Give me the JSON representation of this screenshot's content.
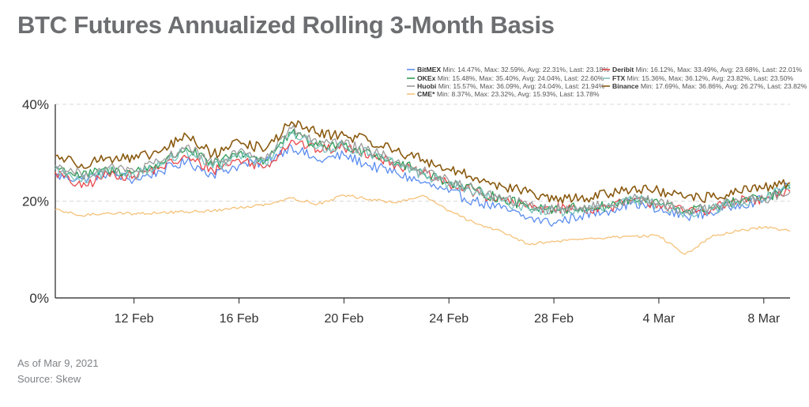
{
  "title": "BTC Futures Annualized Rolling 3-Month Basis",
  "footer": {
    "as_of": "As of Mar 9, 2021",
    "source": "Source: Skew"
  },
  "chart_data": {
    "type": "line",
    "x_start": "2021-02-09",
    "x_end": "2021-03-09",
    "x_ticks": [
      "12 Feb",
      "16 Feb",
      "20 Feb",
      "24 Feb",
      "28 Feb",
      "4 Mar",
      "8 Mar"
    ],
    "x_tick_dates": [
      "2021-02-12",
      "2021-02-16",
      "2021-02-20",
      "2021-02-24",
      "2021-02-28",
      "2021-03-04",
      "2021-03-08"
    ],
    "y_ticks": [
      "0%",
      "20%",
      "40%"
    ],
    "ylim": [
      0,
      40
    ],
    "grid": true,
    "legend_position": "top-right",
    "series": [
      {
        "name": "BitMEX",
        "color": "#5b8def",
        "stats": "Min: 14.47%, Max: 32.59%, Avg: 22.31%, Last: 23.18%",
        "points": [
          [
            "2021-02-09",
            25.2
          ],
          [
            "2021-02-10",
            24.6
          ],
          [
            "2021-02-11",
            25.8
          ],
          [
            "2021-02-12",
            24.4
          ],
          [
            "2021-02-13",
            26.2
          ],
          [
            "2021-02-14",
            28.2
          ],
          [
            "2021-02-15",
            25.6
          ],
          [
            "2021-02-16",
            27.4
          ],
          [
            "2021-02-17",
            28.1
          ],
          [
            "2021-02-18",
            31.4
          ],
          [
            "2021-02-19",
            28.3
          ],
          [
            "2021-02-20",
            29.5
          ],
          [
            "2021-02-21",
            27.3
          ],
          [
            "2021-02-22",
            25.8
          ],
          [
            "2021-02-23",
            23.8
          ],
          [
            "2021-02-24",
            21.8
          ],
          [
            "2021-02-25",
            20.0
          ],
          [
            "2021-02-26",
            18.5
          ],
          [
            "2021-02-27",
            16.5
          ],
          [
            "2021-02-28",
            15.5
          ],
          [
            "2021-03-01",
            17.0
          ],
          [
            "2021-03-02",
            18.0
          ],
          [
            "2021-03-03",
            19.8
          ],
          [
            "2021-03-04",
            18.0
          ],
          [
            "2021-03-05",
            17.0
          ],
          [
            "2021-03-06",
            17.6
          ],
          [
            "2021-03-07",
            19.4
          ],
          [
            "2021-03-08",
            20.2
          ],
          [
            "2021-03-09",
            23.2
          ]
        ]
      },
      {
        "name": "Deribit",
        "color": "#e8474b",
        "stats": "Min: 16.12%, Max: 33.49%, Avg: 23.68%, Last: 22.01%",
        "points": [
          [
            "2021-02-09",
            26.0
          ],
          [
            "2021-02-10",
            22.8
          ],
          [
            "2021-02-11",
            25.6
          ],
          [
            "2021-02-12",
            25.2
          ],
          [
            "2021-02-13",
            27.0
          ],
          [
            "2021-02-14",
            29.0
          ],
          [
            "2021-02-15",
            26.4
          ],
          [
            "2021-02-16",
            28.6
          ],
          [
            "2021-02-17",
            27.0
          ],
          [
            "2021-02-18",
            32.6
          ],
          [
            "2021-02-19",
            30.6
          ],
          [
            "2021-02-20",
            31.0
          ],
          [
            "2021-02-21",
            29.8
          ],
          [
            "2021-02-22",
            27.6
          ],
          [
            "2021-02-23",
            25.6
          ],
          [
            "2021-02-24",
            23.5
          ],
          [
            "2021-02-25",
            21.7
          ],
          [
            "2021-02-26",
            20.2
          ],
          [
            "2021-02-27",
            18.8
          ],
          [
            "2021-02-28",
            18.6
          ],
          [
            "2021-03-01",
            18.4
          ],
          [
            "2021-03-02",
            18.6
          ],
          [
            "2021-03-03",
            20.2
          ],
          [
            "2021-03-04",
            19.4
          ],
          [
            "2021-03-05",
            17.8
          ],
          [
            "2021-03-06",
            18.4
          ],
          [
            "2021-03-07",
            20.0
          ],
          [
            "2021-03-08",
            20.2
          ],
          [
            "2021-03-09",
            22.0
          ]
        ]
      },
      {
        "name": "OKEx",
        "color": "#2e9e57",
        "stats": "Min: 15.48%, Max: 35.40%, Avg: 24.04%, Last: 22.60%",
        "points": [
          [
            "2021-02-09",
            27.0
          ],
          [
            "2021-02-10",
            25.2
          ],
          [
            "2021-02-11",
            26.4
          ],
          [
            "2021-02-12",
            26.0
          ],
          [
            "2021-02-13",
            27.8
          ],
          [
            "2021-02-14",
            31.0
          ],
          [
            "2021-02-15",
            27.4
          ],
          [
            "2021-02-16",
            30.0
          ],
          [
            "2021-02-17",
            28.4
          ],
          [
            "2021-02-18",
            34.0
          ],
          [
            "2021-02-19",
            31.4
          ],
          [
            "2021-02-20",
            31.6
          ],
          [
            "2021-02-21",
            30.2
          ],
          [
            "2021-02-22",
            28.0
          ],
          [
            "2021-02-23",
            26.0
          ],
          [
            "2021-02-24",
            24.0
          ],
          [
            "2021-02-25",
            22.2
          ],
          [
            "2021-02-26",
            20.5
          ],
          [
            "2021-02-27",
            19.0
          ],
          [
            "2021-02-28",
            18.4
          ],
          [
            "2021-03-01",
            18.6
          ],
          [
            "2021-03-02",
            18.9
          ],
          [
            "2021-03-03",
            20.4
          ],
          [
            "2021-03-04",
            19.6
          ],
          [
            "2021-03-05",
            18.0
          ],
          [
            "2021-03-06",
            18.6
          ],
          [
            "2021-03-07",
            20.0
          ],
          [
            "2021-03-08",
            20.6
          ],
          [
            "2021-03-09",
            22.6
          ]
        ]
      },
      {
        "name": "FTX",
        "color": "#7cc3c0",
        "stats": "Min: 15.36%, Max: 36.12%, Avg: 23.82%, Last: 23.50%",
        "points": [
          [
            "2021-02-09",
            26.6
          ],
          [
            "2021-02-10",
            24.0
          ],
          [
            "2021-02-11",
            26.0
          ],
          [
            "2021-02-12",
            25.6
          ],
          [
            "2021-02-13",
            27.4
          ],
          [
            "2021-02-14",
            30.4
          ],
          [
            "2021-02-15",
            26.8
          ],
          [
            "2021-02-16",
            29.4
          ],
          [
            "2021-02-17",
            27.8
          ],
          [
            "2021-02-18",
            34.4
          ],
          [
            "2021-02-19",
            31.0
          ],
          [
            "2021-02-20",
            31.2
          ],
          [
            "2021-02-21",
            29.8
          ],
          [
            "2021-02-22",
            27.6
          ],
          [
            "2021-02-23",
            25.6
          ],
          [
            "2021-02-24",
            23.6
          ],
          [
            "2021-02-25",
            21.8
          ],
          [
            "2021-02-26",
            20.0
          ],
          [
            "2021-02-27",
            18.6
          ],
          [
            "2021-02-28",
            17.8
          ],
          [
            "2021-03-01",
            18.2
          ],
          [
            "2021-03-02",
            18.6
          ],
          [
            "2021-03-03",
            20.4
          ],
          [
            "2021-03-04",
            19.2
          ],
          [
            "2021-03-05",
            17.6
          ],
          [
            "2021-03-06",
            18.2
          ],
          [
            "2021-03-07",
            19.8
          ],
          [
            "2021-03-08",
            20.4
          ],
          [
            "2021-03-09",
            23.5
          ]
        ]
      },
      {
        "name": "Huobi",
        "color": "#9b9b9b",
        "stats": "Min: 15.57%, Max: 36.09%, Avg: 24.04%, Last: 21.94%",
        "points": [
          [
            "2021-02-09",
            27.4
          ],
          [
            "2021-02-10",
            25.4
          ],
          [
            "2021-02-11",
            26.8
          ],
          [
            "2021-02-12",
            26.2
          ],
          [
            "2021-02-13",
            28.0
          ],
          [
            "2021-02-14",
            31.4
          ],
          [
            "2021-02-15",
            27.6
          ],
          [
            "2021-02-16",
            30.4
          ],
          [
            "2021-02-17",
            28.6
          ],
          [
            "2021-02-18",
            35.0
          ],
          [
            "2021-02-19",
            31.8
          ],
          [
            "2021-02-20",
            31.8
          ],
          [
            "2021-02-21",
            30.4
          ],
          [
            "2021-02-22",
            28.2
          ],
          [
            "2021-02-23",
            26.2
          ],
          [
            "2021-02-24",
            24.2
          ],
          [
            "2021-02-25",
            22.4
          ],
          [
            "2021-02-26",
            20.6
          ],
          [
            "2021-02-27",
            19.2
          ],
          [
            "2021-02-28",
            18.2
          ],
          [
            "2021-03-01",
            18.8
          ],
          [
            "2021-03-02",
            19.0
          ],
          [
            "2021-03-03",
            20.6
          ],
          [
            "2021-03-04",
            19.8
          ],
          [
            "2021-03-05",
            18.0
          ],
          [
            "2021-03-06",
            18.8
          ],
          [
            "2021-03-07",
            20.2
          ],
          [
            "2021-03-08",
            20.4
          ],
          [
            "2021-03-09",
            21.9
          ]
        ]
      },
      {
        "name": "Binance",
        "color": "#8a5a10",
        "stats": "Min: 17.69%, Max: 36.86%, Avg: 26.27%, Last: 23.82%",
        "points": [
          [
            "2021-02-09",
            29.4
          ],
          [
            "2021-02-10",
            27.6
          ],
          [
            "2021-02-11",
            29.0
          ],
          [
            "2021-02-12",
            28.6
          ],
          [
            "2021-02-13",
            30.2
          ],
          [
            "2021-02-14",
            33.6
          ],
          [
            "2021-02-15",
            29.6
          ],
          [
            "2021-02-16",
            32.4
          ],
          [
            "2021-02-17",
            30.6
          ],
          [
            "2021-02-18",
            36.4
          ],
          [
            "2021-02-19",
            34.0
          ],
          [
            "2021-02-20",
            33.6
          ],
          [
            "2021-02-21",
            32.4
          ],
          [
            "2021-02-22",
            30.4
          ],
          [
            "2021-02-23",
            28.6
          ],
          [
            "2021-02-24",
            26.6
          ],
          [
            "2021-02-25",
            24.8
          ],
          [
            "2021-02-26",
            23.2
          ],
          [
            "2021-02-27",
            21.8
          ],
          [
            "2021-02-28",
            20.2
          ],
          [
            "2021-03-01",
            20.6
          ],
          [
            "2021-03-02",
            21.4
          ],
          [
            "2021-03-03",
            22.8
          ],
          [
            "2021-03-04",
            22.0
          ],
          [
            "2021-03-05",
            20.6
          ],
          [
            "2021-03-06",
            20.8
          ],
          [
            "2021-03-07",
            22.0
          ],
          [
            "2021-03-08",
            22.6
          ],
          [
            "2021-03-09",
            23.8
          ]
        ]
      },
      {
        "name": "CME*",
        "color": "#f5c27a",
        "stats": "Min: 8.37%, Max: 23.32%, Avg: 15.93%, Last: 13.78%",
        "points": [
          [
            "2021-02-09",
            18.2
          ],
          [
            "2021-02-10",
            17.0
          ],
          [
            "2021-02-11",
            17.6
          ],
          [
            "2021-02-12",
            17.4
          ],
          [
            "2021-02-13",
            17.6
          ],
          [
            "2021-02-14",
            17.8
          ],
          [
            "2021-02-15",
            18.0
          ],
          [
            "2021-02-16",
            18.6
          ],
          [
            "2021-02-17",
            19.4
          ],
          [
            "2021-02-18",
            20.6
          ],
          [
            "2021-02-19",
            19.4
          ],
          [
            "2021-02-20",
            21.2
          ],
          [
            "2021-02-21",
            20.4
          ],
          [
            "2021-02-22",
            19.6
          ],
          [
            "2021-02-23",
            21.2
          ],
          [
            "2021-02-24",
            18.0
          ],
          [
            "2021-02-25",
            15.4
          ],
          [
            "2021-02-26",
            13.8
          ],
          [
            "2021-02-27",
            11.2
          ],
          [
            "2021-02-28",
            11.6
          ],
          [
            "2021-03-01",
            12.2
          ],
          [
            "2021-03-02",
            12.4
          ],
          [
            "2021-03-03",
            12.8
          ],
          [
            "2021-03-04",
            12.8
          ],
          [
            "2021-03-05",
            9.0
          ],
          [
            "2021-03-06",
            12.6
          ],
          [
            "2021-03-07",
            13.8
          ],
          [
            "2021-03-08",
            14.6
          ],
          [
            "2021-03-09",
            13.8
          ]
        ]
      }
    ]
  }
}
